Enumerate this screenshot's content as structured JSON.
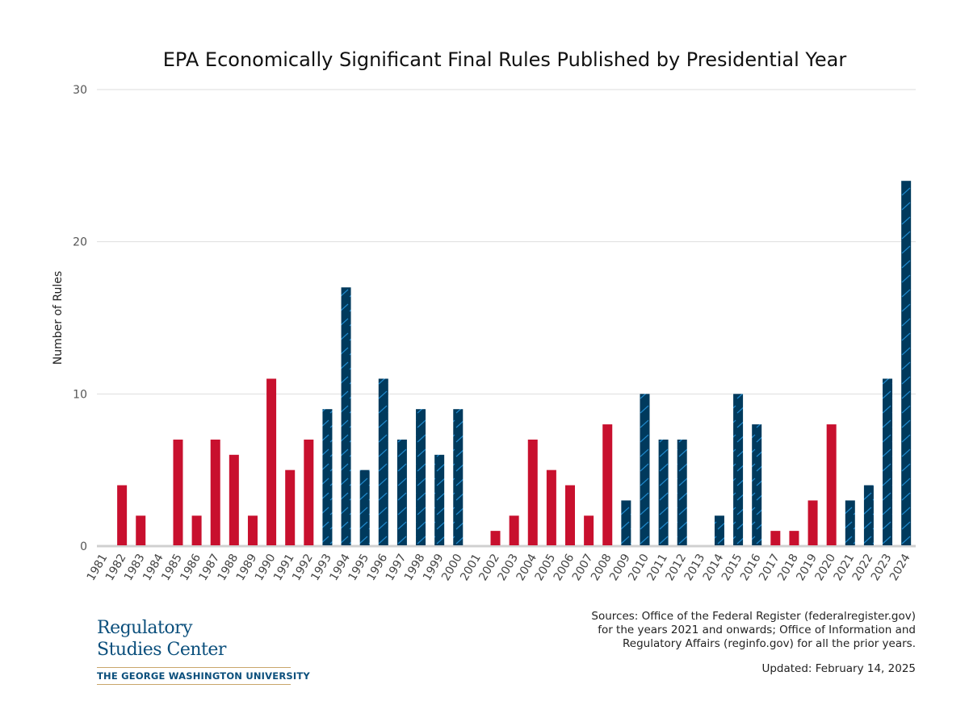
{
  "chart_data": {
    "type": "bar",
    "title": "EPA Economically Significant Final Rules Published by Presidential Year",
    "ylabel": "Number of Rules",
    "xlabel": "",
    "ylim": [
      0,
      30
    ],
    "yticks": [
      0,
      10,
      20,
      30
    ],
    "grid": true,
    "categories": [
      "1981",
      "1982",
      "1983",
      "1984",
      "1985",
      "1986",
      "1987",
      "1988",
      "1989",
      "1990",
      "1991",
      "1992",
      "1993",
      "1994",
      "1995",
      "1996",
      "1997",
      "1998",
      "1999",
      "2000",
      "2001",
      "2002",
      "2003",
      "2004",
      "2005",
      "2006",
      "2007",
      "2008",
      "2009",
      "2010",
      "2011",
      "2012",
      "2013",
      "2014",
      "2015",
      "2016",
      "2017",
      "2018",
      "2019",
      "2020",
      "2021",
      "2022",
      "2023",
      "2024"
    ],
    "values": [
      0,
      4,
      2,
      0,
      7,
      2,
      7,
      6,
      2,
      11,
      5,
      7,
      9,
      17,
      5,
      11,
      7,
      9,
      6,
      9,
      0,
      1,
      2,
      7,
      5,
      4,
      2,
      8,
      3,
      10,
      7,
      7,
      0,
      2,
      10,
      8,
      1,
      1,
      3,
      8,
      3,
      4,
      11,
      24
    ],
    "party": [
      "R",
      "R",
      "R",
      "R",
      "R",
      "R",
      "R",
      "R",
      "R",
      "R",
      "R",
      "R",
      "D",
      "D",
      "D",
      "D",
      "D",
      "D",
      "D",
      "D",
      "R",
      "R",
      "R",
      "R",
      "R",
      "R",
      "R",
      "R",
      "D",
      "D",
      "D",
      "D",
      "D",
      "D",
      "D",
      "D",
      "R",
      "R",
      "R",
      "R",
      "D",
      "D",
      "D",
      "D"
    ],
    "colors": {
      "R": "#c8102e",
      "D": "#003a5d",
      "D_hatch": "#1f86c8"
    }
  },
  "footer": {
    "sources": [
      "Sources: Office of the Federal Register (federalregister.gov)",
      "for the years 2021 and onwards; Office of Information and",
      "Regulatory Affairs (reginfo.gov) for all the prior years."
    ],
    "updated": "Updated: February 14, 2025"
  },
  "logo": {
    "line1": "Regulatory",
    "line2": "Studies Center",
    "university": "THE GEORGE WASHINGTON UNIVERSITY"
  }
}
